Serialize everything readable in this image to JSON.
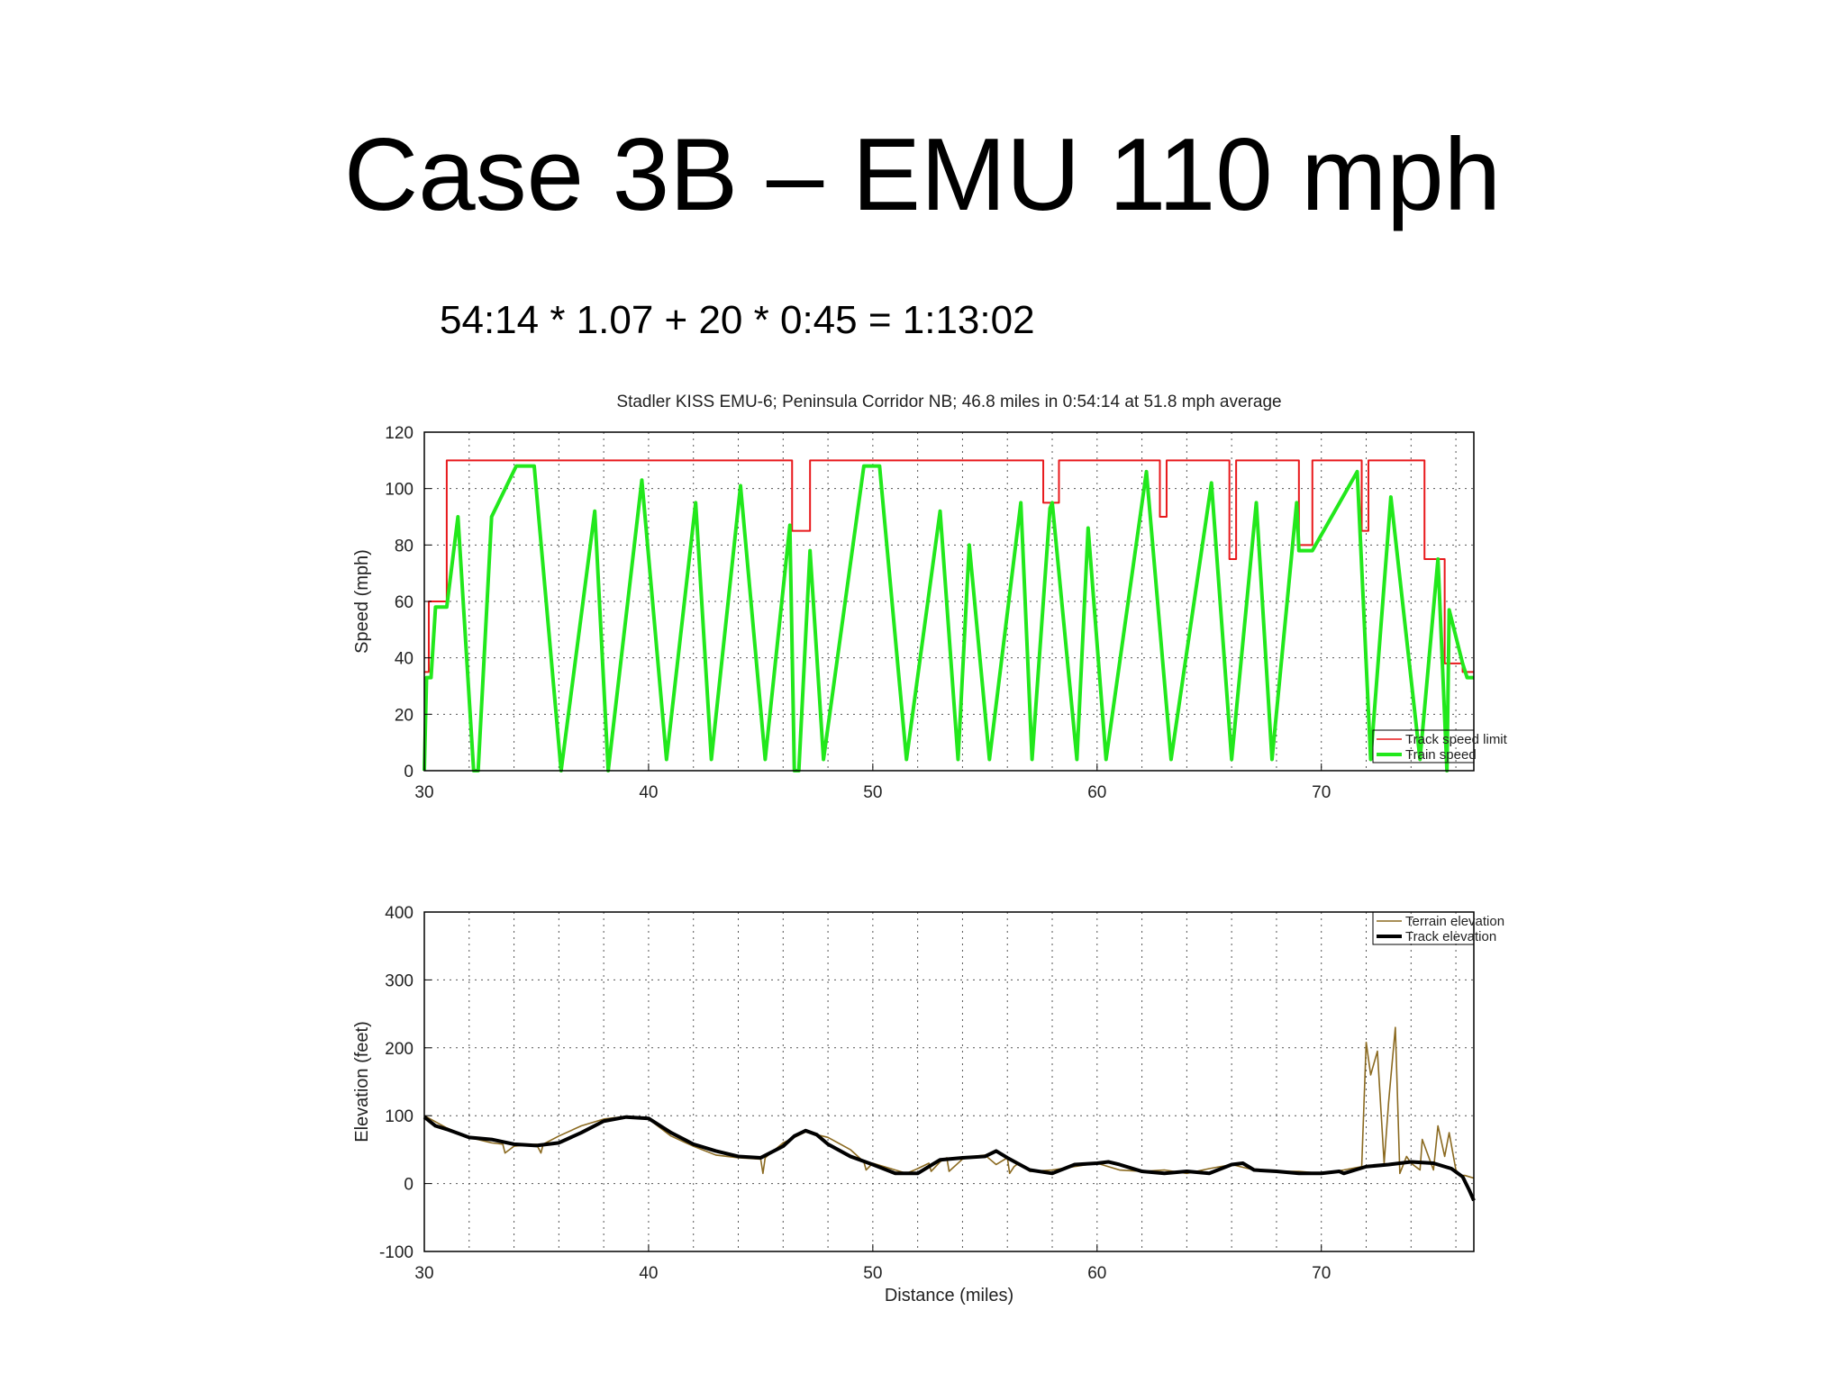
{
  "slide": {
    "title": "Case 3B – EMU 110 mph",
    "formula": "54:14 * 1.07 + 20 * 0:45 = 1:13:02"
  },
  "chart_data": [
    {
      "type": "line",
      "title": "Stadler KISS EMU-6; Peninsula Corridor NB; 46.8 miles in 0:54:14 at  51.8 mph average",
      "xlabel": "",
      "ylabel": "Speed (mph)",
      "xlim": [
        30,
        76.8
      ],
      "ylim": [
        0,
        120
      ],
      "xticks": [
        30,
        40,
        50,
        60,
        70
      ],
      "yticks": [
        0,
        20,
        40,
        60,
        80,
        100,
        120
      ],
      "grid": true,
      "legend_position": "bottom-right",
      "series": [
        {
          "name": "Track speed limit",
          "color": "#e8191c",
          "step": true,
          "x": [
            30,
            30.2,
            31,
            46.4,
            47.2,
            57.6,
            58.3,
            62.8,
            63.1,
            65.9,
            66.2,
            69,
            69.6,
            71.8,
            72.1,
            74.6,
            75.5,
            76.3,
            76.8
          ],
          "y": [
            35,
            60,
            110,
            85,
            110,
            95,
            110,
            90,
            110,
            75,
            110,
            80,
            110,
            85,
            110,
            75,
            38,
            35,
            35
          ]
        },
        {
          "name": "Train speed",
          "color": "#22e81c",
          "x": [
            30,
            30.1,
            30.3,
            30.5,
            30.7,
            31,
            31.5,
            32.2,
            32.4,
            33,
            34.1,
            34.9,
            36.1,
            37.6,
            38.2,
            39.7,
            40.8,
            42.1,
            42.8,
            44.1,
            45.2,
            46.3,
            46.5,
            46.7,
            47.2,
            47.8,
            49.6,
            50.3,
            51.5,
            53,
            53.8,
            54.3,
            55.2,
            56.6,
            57.1,
            57.9,
            58,
            59.1,
            59.6,
            60.4,
            62.2,
            63.3,
            65.1,
            66,
            67.1,
            67.8,
            68.9,
            69,
            69.6,
            71.6,
            72.2,
            73.1,
            74.4,
            75.2,
            75.6,
            75.7,
            76.3,
            76.5,
            76.8
          ],
          "y": [
            0,
            33,
            33,
            58,
            58,
            58,
            90,
            0,
            0,
            90,
            108,
            108,
            0,
            92,
            0,
            103,
            4,
            95,
            4,
            101,
            4,
            87,
            0,
            0,
            78,
            4,
            108,
            108,
            4,
            92,
            4,
            80,
            4,
            95,
            4,
            93,
            95,
            4,
            86,
            4,
            106,
            4,
            102,
            4,
            95,
            4,
            95,
            78,
            78,
            106,
            4,
            97,
            4,
            75,
            0,
            57,
            38,
            33,
            33
          ]
        }
      ]
    },
    {
      "type": "line",
      "title": "",
      "xlabel": "Distance (miles)",
      "ylabel": "Elevation (feet)",
      "xlim": [
        30,
        76.8
      ],
      "ylim": [
        -100,
        400
      ],
      "xticks": [
        30,
        40,
        50,
        60,
        70
      ],
      "yticks": [
        -100,
        0,
        100,
        200,
        300,
        400
      ],
      "grid": true,
      "legend_position": "top-right",
      "series": [
        {
          "name": "Terrain elevation",
          "color": "#8b6a20",
          "x": [
            30,
            31,
            32,
            33,
            33.5,
            33.6,
            34,
            35,
            35.2,
            35.3,
            36,
            37,
            38,
            39,
            40,
            41,
            42,
            43,
            44,
            45,
            45.1,
            45.2,
            46,
            47,
            48,
            49,
            49.6,
            49.7,
            50,
            51,
            51.5,
            52,
            52.5,
            52.6,
            53,
            53.3,
            53.4,
            54,
            54.5,
            55,
            55.5,
            56,
            56.1,
            56.3,
            56.5,
            57,
            58,
            59,
            60,
            61,
            62,
            63,
            64,
            65,
            66,
            67,
            68,
            69,
            70,
            71,
            71.8,
            72,
            72.2,
            72.5,
            72.8,
            73,
            73.3,
            73.5,
            73.8,
            74,
            74.4,
            74.5,
            75,
            75.2,
            75.5,
            75.7,
            76,
            76.2,
            76.4,
            76.8
          ],
          "y": [
            100,
            82,
            68,
            60,
            58,
            45,
            55,
            58,
            45,
            58,
            70,
            85,
            95,
            99,
            95,
            70,
            55,
            42,
            38,
            36,
            15,
            38,
            60,
            76,
            68,
            50,
            32,
            20,
            30,
            20,
            15,
            22,
            30,
            18,
            32,
            38,
            18,
            36,
            40,
            42,
            28,
            38,
            15,
            25,
            30,
            18,
            20,
            25,
            30,
            20,
            18,
            20,
            15,
            22,
            28,
            20,
            18,
            18,
            15,
            20,
            25,
            208,
            160,
            195,
            30,
            120,
            230,
            15,
            40,
            30,
            20,
            65,
            20,
            85,
            40,
            75,
            20,
            12,
            12,
            8
          ]
        },
        {
          "name": "Track elevation",
          "color": "#000000",
          "x": [
            30,
            30.5,
            31,
            32,
            33,
            34,
            35,
            36,
            37,
            38,
            39,
            40,
            41,
            42,
            43,
            44,
            45,
            46,
            46.5,
            47,
            47.5,
            48,
            49,
            50,
            51,
            52,
            52.5,
            53,
            54,
            55,
            55.5,
            56,
            57,
            58,
            59,
            60,
            60.5,
            61,
            62,
            63,
            64,
            65,
            66,
            66.5,
            67,
            68,
            69,
            70,
            70.8,
            71,
            72,
            73,
            74,
            75,
            75.8,
            76.3,
            76.6,
            76.8
          ],
          "y": [
            98,
            85,
            80,
            68,
            65,
            58,
            56,
            60,
            75,
            92,
            98,
            96,
            75,
            58,
            48,
            40,
            38,
            55,
            70,
            78,
            72,
            58,
            40,
            28,
            15,
            15,
            25,
            35,
            38,
            40,
            48,
            38,
            20,
            15,
            28,
            30,
            32,
            28,
            18,
            15,
            18,
            15,
            28,
            30,
            20,
            18,
            15,
            15,
            18,
            15,
            25,
            28,
            32,
            30,
            22,
            10,
            -10,
            -25
          ]
        }
      ]
    }
  ]
}
